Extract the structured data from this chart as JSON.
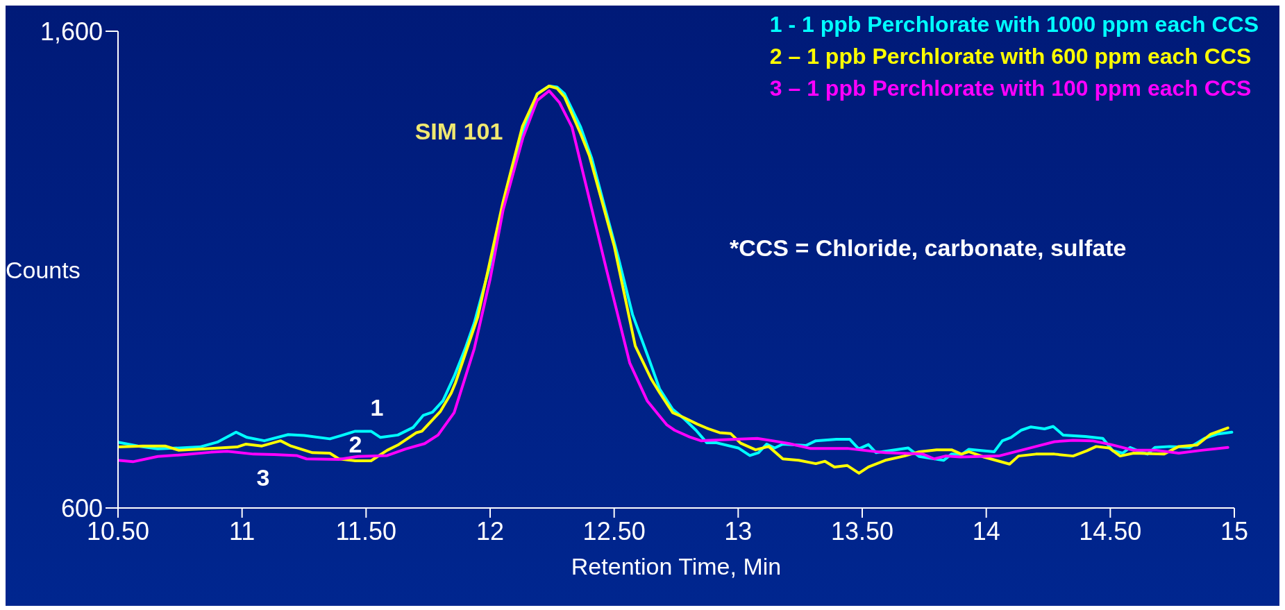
{
  "chart_data": {
    "type": "line",
    "xlabel": "Retention Time, Min",
    "ylabel": "Counts",
    "xlim": [
      10.5,
      15
    ],
    "xticks": [
      {
        "value": 10.5,
        "label": "10.50"
      },
      11,
      {
        "value": 11.5,
        "label": "11.50"
      },
      12,
      {
        "value": 12.5,
        "label": "12.50"
      },
      13,
      {
        "value": 13.5,
        "label": "13.50"
      },
      14,
      {
        "value": 14.5,
        "label": "14.50"
      },
      15
    ],
    "ylim": [
      600,
      1600
    ],
    "yticks": [
      600,
      {
        "value": 1600,
        "label": "1,600"
      }
    ],
    "grid": false,
    "legend": "top right",
    "marker": "none",
    "line_style": "solid",
    "series": [
      {
        "name": "1 - 1 ppb Perchlorate with 1000 ppm each CCS",
        "color": "#00ffff",
        "x": [
          10.5,
          10.58,
          10.66,
          10.75,
          10.83,
          10.9,
          10.976,
          11.02,
          11.09,
          11.186,
          11.25,
          11.354,
          11.4,
          11.456,
          11.52,
          11.558,
          11.628,
          11.69,
          11.73,
          11.768,
          11.81,
          11.855,
          11.9,
          11.936,
          12.0,
          12.052,
          12.1,
          12.133,
          12.19,
          12.238,
          12.27,
          12.3,
          12.365,
          12.41,
          12.46,
          12.516,
          12.574,
          12.644,
          12.683,
          12.736,
          12.78,
          12.83,
          12.873,
          12.91,
          13.0,
          13.047,
          13.082,
          13.115,
          13.147,
          13.18,
          13.273,
          13.313,
          13.396,
          13.45,
          13.486,
          13.525,
          13.556,
          13.685,
          13.73,
          13.828,
          13.86,
          13.9,
          13.93,
          14.032,
          14.065,
          14.1,
          14.14,
          14.18,
          14.235,
          14.27,
          14.31,
          14.4,
          14.47,
          14.51,
          14.55,
          14.58,
          14.62,
          14.65,
          14.68,
          14.74,
          14.82,
          14.88,
          14.93,
          14.99
        ],
        "values": [
          738,
          730,
          724,
          726,
          728,
          738,
          759,
          748,
          741,
          754,
          752,
          745,
          752,
          761,
          761,
          748,
          753,
          769,
          794,
          801,
          825,
          876,
          935,
          988,
          1110,
          1230,
          1330,
          1390,
          1469,
          1485,
          1483,
          1469,
          1399,
          1333,
          1235,
          1127,
          1006,
          907,
          850,
          807,
          788,
          763,
          737,
          737,
          726,
          710,
          716,
          734,
          726,
          734,
          731,
          741,
          744,
          744,
          724,
          733,
          716,
          726,
          708,
          700,
          713,
          712,
          723,
          718,
          741,
          748,
          763,
          770,
          766,
          771,
          753,
          750,
          746,
          720,
          715,
          727,
          718,
          713,
          727,
          729,
          727,
          746,
          755,
          759
        ]
      },
      {
        "name": "2 – 1 ppb Perchlorate with 600 ppm each CCS",
        "color": "#ffff00",
        "x": [
          10.5,
          10.6,
          10.69,
          10.745,
          10.85,
          10.98,
          11.016,
          11.08,
          11.155,
          11.197,
          11.284,
          11.354,
          11.39,
          11.456,
          11.52,
          11.585,
          11.628,
          11.703,
          11.725,
          11.8,
          11.843,
          11.86,
          11.95,
          12.052,
          12.13,
          12.19,
          12.238,
          12.27,
          12.3,
          12.365,
          12.4,
          12.45,
          12.5,
          12.585,
          12.65,
          12.683,
          12.736,
          12.78,
          12.835,
          12.88,
          12.925,
          12.97,
          13.01,
          13.07,
          13.123,
          13.18,
          13.244,
          13.313,
          13.35,
          13.388,
          13.44,
          13.487,
          13.525,
          13.593,
          13.67,
          13.73,
          13.8,
          13.86,
          13.9,
          13.93,
          13.99,
          14.094,
          14.13,
          14.2,
          14.275,
          14.35,
          14.405,
          14.443,
          14.495,
          14.54,
          14.594,
          14.716,
          14.776,
          14.85,
          14.905,
          14.974
        ],
        "values": [
          728,
          730,
          730,
          721,
          724,
          728,
          734,
          730,
          741,
          730,
          716,
          715,
          703,
          699,
          699,
          721,
          732,
          758,
          761,
          803,
          841,
          862,
          1000,
          1242,
          1400,
          1468,
          1485,
          1480,
          1462,
          1385,
          1339,
          1245,
          1150,
          940,
          870,
          842,
          800,
          790,
          776,
          766,
          758,
          756,
          736,
          722,
          729,
          703,
          700,
          693,
          698,
          686,
          689,
          673,
          686,
          700,
          709,
          718,
          722,
          722,
          713,
          718,
          707,
          692,
          709,
          713,
          713,
          709,
          720,
          729,
          726,
          709,
          715,
          713,
          729,
          732,
          755,
          768
        ]
      },
      {
        "name": "3 – 1 ppb Perchlorate with 100 ppm each CCS",
        "color": "#ff00ff",
        "x": [
          10.5,
          10.56,
          10.66,
          10.77,
          10.875,
          10.94,
          11.046,
          11.13,
          11.22,
          11.26,
          11.39,
          11.466,
          11.585,
          11.66,
          11.736,
          11.79,
          11.855,
          11.936,
          12.0,
          12.052,
          12.133,
          12.19,
          12.238,
          12.28,
          12.33,
          12.4,
          12.47,
          12.563,
          12.633,
          12.683,
          12.713,
          12.744,
          12.804,
          12.85,
          12.986,
          13.077,
          13.138,
          13.206,
          13.29,
          13.44,
          13.593,
          13.745,
          13.79,
          13.836,
          13.896,
          14.05,
          14.2,
          14.275,
          14.35,
          14.427,
          14.503,
          14.594,
          14.686,
          14.776,
          14.868,
          14.974
        ],
        "values": [
          700,
          697,
          708,
          712,
          717,
          719,
          713,
          712,
          710,
          703,
          702,
          708,
          710,
          724,
          735,
          753,
          800,
          934,
          1080,
          1224,
          1378,
          1455,
          1475,
          1450,
          1399,
          1248,
          1098,
          904,
          825,
          793,
          774,
          763,
          749,
          741,
          744,
          746,
          741,
          735,
          725,
          725,
          716,
          713,
          703,
          709,
          707,
          709,
          729,
          739,
          742,
          741,
          733,
          721,
          721,
          715,
          721,
          727
        ]
      }
    ],
    "annotations": [
      "SIM 101",
      "1",
      "2",
      "3",
      "*CCS = Chloride, carbonate, sulfate"
    ]
  }
}
